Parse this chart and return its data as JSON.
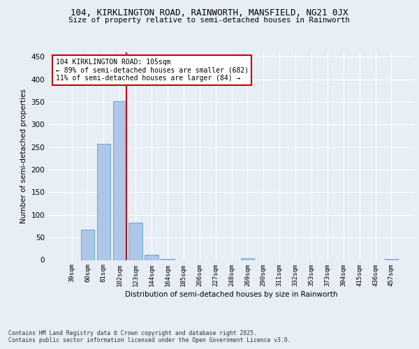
{
  "title1": "104, KIRKLINGTON ROAD, RAINWORTH, MANSFIELD, NG21 0JX",
  "title2": "Size of property relative to semi-detached houses in Rainworth",
  "xlabel": "Distribution of semi-detached houses by size in Rainworth",
  "ylabel": "Number of semi-detached properties",
  "categories": [
    "39sqm",
    "60sqm",
    "81sqm",
    "102sqm",
    "123sqm",
    "144sqm",
    "164sqm",
    "185sqm",
    "206sqm",
    "227sqm",
    "248sqm",
    "269sqm",
    "290sqm",
    "311sqm",
    "332sqm",
    "353sqm",
    "373sqm",
    "394sqm",
    "415sqm",
    "436sqm",
    "457sqm"
  ],
  "values": [
    0,
    67,
    257,
    352,
    83,
    11,
    3,
    0,
    0,
    0,
    0,
    4,
    0,
    0,
    0,
    0,
    0,
    0,
    0,
    0,
    3
  ],
  "bar_color": "#aec6e8",
  "bar_edge_color": "#5a9fd4",
  "vline_x": 3.42,
  "vline_color": "#cc0000",
  "annotation_title": "104 KIRKLINGTON ROAD: 105sqm",
  "annotation_line1": "← 89% of semi-detached houses are smaller (682)",
  "annotation_line2": "11% of semi-detached houses are larger (84) →",
  "annotation_box_color": "#ffffff",
  "annotation_box_edge": "#cc0000",
  "footer1": "Contains HM Land Registry data © Crown copyright and database right 2025.",
  "footer2": "Contains public sector information licensed under the Open Government Licence v3.0.",
  "bg_color": "#e8eef5",
  "plot_bg_color": "#e8eef5",
  "ylim": [
    0,
    460
  ],
  "yticks": [
    0,
    50,
    100,
    150,
    200,
    250,
    300,
    350,
    400,
    450
  ]
}
